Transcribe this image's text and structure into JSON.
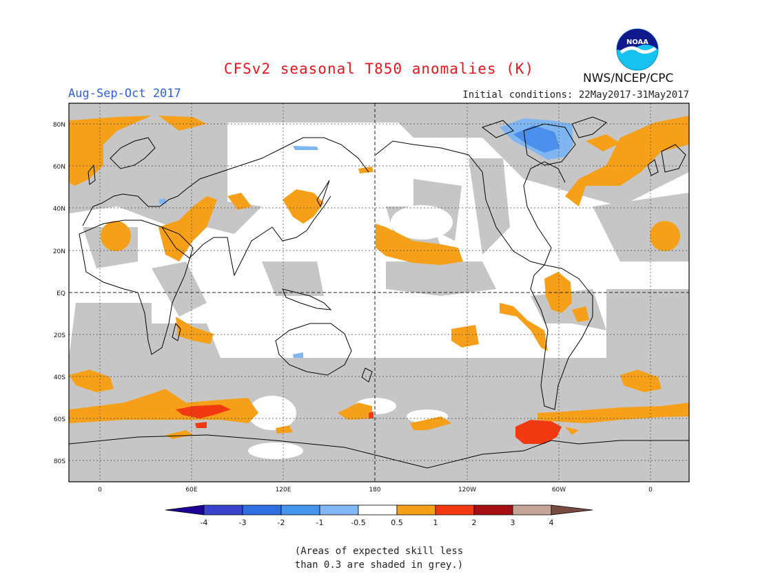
{
  "header": {
    "title": "CFSv2 seasonal T850 anomalies (K)",
    "season": "Aug-Sep-Oct 2017",
    "initial_conditions": "Initial conditions: 22May2017-31May2017",
    "agency": "NWS/NCEP/CPC",
    "logo_text": "NOAA"
  },
  "map": {
    "projection": "equirectangular",
    "lat_labels": [
      "80N",
      "60N",
      "40N",
      "20N",
      "EQ",
      "20S",
      "40S",
      "60S",
      "80S"
    ],
    "lon_labels": [
      "0",
      "60E",
      "120E",
      "180",
      "120W",
      "60W",
      "0"
    ],
    "grey_note": "grey = expected skill less than 0.3",
    "colors": {
      "grey": "#c6c6c6",
      "ocean": "#ffffff",
      "anom_0_5_1": "#f6a01a",
      "anom_1_2": "#f23a12",
      "anom_neg_1_neg_0_5": "#7fb6f2",
      "anom_neg_2_neg_1": "#4a8fec",
      "coast": "#000000"
    }
  },
  "colorbar": {
    "labels": [
      "-4",
      "-3",
      "-2",
      "-1",
      "-0.5",
      "0.5",
      "1",
      "2",
      "3",
      "4"
    ],
    "colors": [
      "#1c0096",
      "#3a43cc",
      "#2f6fe1",
      "#4595ee",
      "#80b7f4",
      "#ffffff",
      "#f6a01a",
      "#f23a12",
      "#a50f13",
      "#c4a597",
      "#7a4b42"
    ]
  },
  "footnote": {
    "line1": "(Areas of expected skill less",
    "line2": "than 0.3 are shaded in grey.)"
  }
}
